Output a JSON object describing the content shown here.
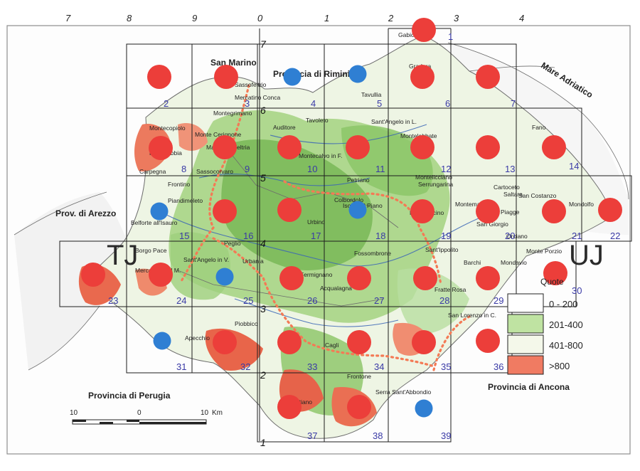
{
  "top_ruler": [
    "7",
    "8",
    "9",
    "0",
    "1",
    "2",
    "3",
    "4"
  ],
  "vertical_ruler": [
    "7",
    "6",
    "5",
    "4",
    "3",
    "2",
    "1"
  ],
  "zone_labels": {
    "left": "TJ",
    "right": "UJ"
  },
  "cells": [
    {
      "id": "1",
      "point": "red"
    },
    {
      "id": "2",
      "point": "red"
    },
    {
      "id": "3",
      "point": "red"
    },
    {
      "id": "4",
      "point": "blue"
    },
    {
      "id": "5",
      "point": "blue"
    },
    {
      "id": "6",
      "point": "red"
    },
    {
      "id": "7",
      "point": "red"
    },
    {
      "id": "8",
      "point": "red"
    },
    {
      "id": "9",
      "point": "red"
    },
    {
      "id": "10",
      "point": "red"
    },
    {
      "id": "11",
      "point": "red"
    },
    {
      "id": "12",
      "point": "red"
    },
    {
      "id": "13",
      "point": "red"
    },
    {
      "id": "14",
      "point": "red"
    },
    {
      "id": "15",
      "point": "blue"
    },
    {
      "id": "16",
      "point": "red"
    },
    {
      "id": "17",
      "point": "red"
    },
    {
      "id": "18",
      "point": "blue"
    },
    {
      "id": "19",
      "point": "red"
    },
    {
      "id": "20",
      "point": "red"
    },
    {
      "id": "21",
      "point": "red"
    },
    {
      "id": "22",
      "point": "red"
    },
    {
      "id": "23",
      "point": "red"
    },
    {
      "id": "24",
      "point": "red"
    },
    {
      "id": "25",
      "point": "blue"
    },
    {
      "id": "26",
      "point": "red"
    },
    {
      "id": "27",
      "point": "red"
    },
    {
      "id": "28",
      "point": "red"
    },
    {
      "id": "29",
      "point": "red"
    },
    {
      "id": "30",
      "point": "red"
    },
    {
      "id": "31",
      "point": "blue"
    },
    {
      "id": "32",
      "point": "red"
    },
    {
      "id": "33",
      "point": "red"
    },
    {
      "id": "34",
      "point": "red"
    },
    {
      "id": "35",
      "point": "red"
    },
    {
      "id": "36",
      "point": "red"
    },
    {
      "id": "37",
      "point": "red"
    },
    {
      "id": "38",
      "point": "red"
    },
    {
      "id": "39",
      "point": "blue"
    }
  ],
  "regions": {
    "san_marino": "San Marino",
    "rimini": "Provincia di Rimini",
    "arezzo": "Prov. di Arezzo",
    "perugia": "Provincia di Perugia",
    "ancona": "Provincia di Ancona",
    "sea": "Mare Adriatico"
  },
  "places": [
    "Gabicce",
    "Gradara",
    "Tavullia",
    "Sassofeltrio",
    "Mercatino Conca",
    "Montegrimano",
    "Sant'Angelo in L.",
    "Montecopiolo",
    "Monte Cerignone",
    "Macerata Feltria",
    "Auditore",
    "Tavoleto",
    "Montecalvo in F.",
    "Montelabbate",
    "Fano",
    "Pietrarubbia",
    "Carpegna",
    "Sassocorvaro",
    "Frontino",
    "Montelicciano",
    "Cartoceto",
    "Petriano",
    "Saltara",
    "Serrungarina",
    "Montemaggiore",
    "Piagge",
    "San Costanzo",
    "Mondolfo",
    "Piandimeleto",
    "Belforte all'Isauro",
    "Montefelcino",
    "Colbordolo",
    "Isola del Piano",
    "Urbino",
    "San Giorgio",
    "Orciano",
    "Peglio",
    "Borgo Pace",
    "Sant'Angelo in V.",
    "Urbania",
    "Fossombrone",
    "Sant'Ippolito",
    "Barchi",
    "Monte Porzio",
    "Mercatello sul M.",
    "Fermignano",
    "Acqualagna",
    "Fratte Rosa",
    "Mondavio",
    "San Lorenzo in C.",
    "Piobbico",
    "Apecchio",
    "Cagli",
    "Frontone",
    "Serra Sant'Abbondio",
    "Cantiano"
  ],
  "legend": {
    "title": "Quote",
    "items": [
      {
        "label": "0 - 200",
        "color": "#ffffff"
      },
      {
        "label": "201-400",
        "color": "#bfe3a2"
      },
      {
        "label": "401-800",
        "color": "#f4f8ea"
      },
      {
        "label": ">800",
        "color": "#f07b62"
      }
    ]
  },
  "scale_bar": {
    "labels": [
      "10",
      "0",
      "10"
    ],
    "unit": "Km"
  },
  "colors": {
    "red_point": "#ec3e3a",
    "blue_point": "#2f7fd3",
    "cell_number": "#3a3aa6",
    "route": "#f47a55",
    "relief_low": "#8bc56b",
    "relief_high": "#e45d43"
  }
}
